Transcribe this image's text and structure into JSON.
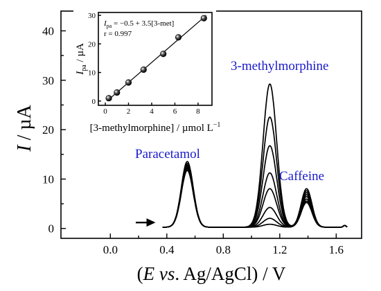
{
  "chart_data": [
    {
      "type": "line",
      "xlabel_parts": [
        "(",
        "E",
        " ",
        "vs",
        ". Ag/AgCl) / V"
      ],
      "ylabel_parts": [
        "I",
        " / µA"
      ],
      "xlim": [
        -0.35,
        1.78
      ],
      "ylim": [
        -2,
        44
      ],
      "x_ticks": [
        "0.0",
        "0.4",
        "0.8",
        "1.2",
        "1.6"
      ],
      "x_tick_values": [
        0.0,
        0.4,
        0.8,
        1.2,
        1.6
      ],
      "y_ticks": [
        "0",
        "10",
        "20",
        "30",
        "40"
      ],
      "y_tick_values": [
        0,
        10,
        20,
        30,
        40
      ],
      "annotations": {
        "paracetamol": "Paracetamol",
        "methylmorphine": "3-methylmorphine",
        "caffeine": "Caffeine"
      },
      "arrow": {
        "x_start": 0.18,
        "x_end": 0.32,
        "y": 1.2
      },
      "baseline_start": 0.37,
      "baseline_end": 1.68,
      "peaks": {
        "paracetamol": {
          "center": 0.545,
          "width": 0.042
        },
        "methylmorphine": {
          "center": 1.13,
          "width": 0.048
        },
        "caffeine": {
          "center": 1.39,
          "width": 0.038
        }
      },
      "series": [
        {
          "paracetamol": 11.5,
          "methylmorphine": 0.6,
          "caffeine": 5.0
        },
        {
          "paracetamol": 11.8,
          "methylmorphine": 1.8,
          "caffeine": 5.3
        },
        {
          "paracetamol": 12.0,
          "methylmorphine": 4.0,
          "caffeine": 5.7
        },
        {
          "paracetamol": 12.2,
          "methylmorphine": 7.8,
          "caffeine": 6.2
        },
        {
          "paracetamol": 12.4,
          "methylmorphine": 11.0,
          "caffeine": 6.6
        },
        {
          "paracetamol": 12.6,
          "methylmorphine": 16.5,
          "caffeine": 7.0
        },
        {
          "paracetamol": 12.9,
          "methylmorphine": 22.3,
          "caffeine": 7.4
        },
        {
          "paracetamol": 13.3,
          "methylmorphine": 29.0,
          "caffeine": 7.8
        }
      ]
    },
    {
      "type": "scatter",
      "xlabel": "[3-methylmorphine] / µmol L",
      "xlabel_sup": "−1",
      "ylabel_main": "I",
      "ylabel_sub": "pa",
      "ylabel_unit": " / µA",
      "equation_I": "I",
      "equation_sub": "pa",
      "equation_rest": " = −0.5 + 3.5[3-met]",
      "r_text": "r = 0.997",
      "xlim": [
        -0.6,
        9.2
      ],
      "ylim": [
        -1.5,
        31
      ],
      "x_ticks": [
        "0",
        "2",
        "4",
        "6",
        "8"
      ],
      "x_tick_values": [
        0,
        2,
        4,
        6,
        8
      ],
      "y_ticks": [
        "0",
        "10",
        "20",
        "30"
      ],
      "y_tick_values": [
        0,
        10,
        20,
        30
      ],
      "x": [
        0.3,
        1.0,
        2.0,
        3.3,
        5.0,
        6.3,
        8.5
      ],
      "y": [
        1.0,
        3.0,
        6.5,
        11.0,
        16.5,
        22.3,
        29.0
      ],
      "fit": {
        "intercept": -0.5,
        "slope": 3.5
      }
    }
  ]
}
